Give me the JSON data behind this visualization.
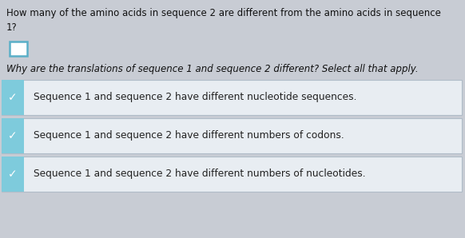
{
  "bg_color": "#c8ccd4",
  "question1": "How many of the amino acids in sequence 2 are different from the amino acids in sequence\n1?",
  "question2": "Why are the translations of sequence 1 and sequence 2 different? Select all that apply.",
  "options": [
    "Sequence 1 and sequence 2 have different nucleotide sequences.",
    "Sequence 1 and sequence 2 have different numbers of codons.",
    "Sequence 1 and sequence 2 have different numbers of nucleotides."
  ],
  "check_color": "#ffffff",
  "check_bg": "#7ecbdc",
  "box_border": "#5aafc8",
  "checkbox_border": "#5aafc8",
  "text_color": "#111111",
  "opt_text_color": "#222222",
  "q1_fontsize": 8.5,
  "q2_fontsize": 8.5,
  "opt_fontsize": 8.8,
  "option_box_bg": "#e8edf2",
  "option_box_border": "#b0bcc8"
}
